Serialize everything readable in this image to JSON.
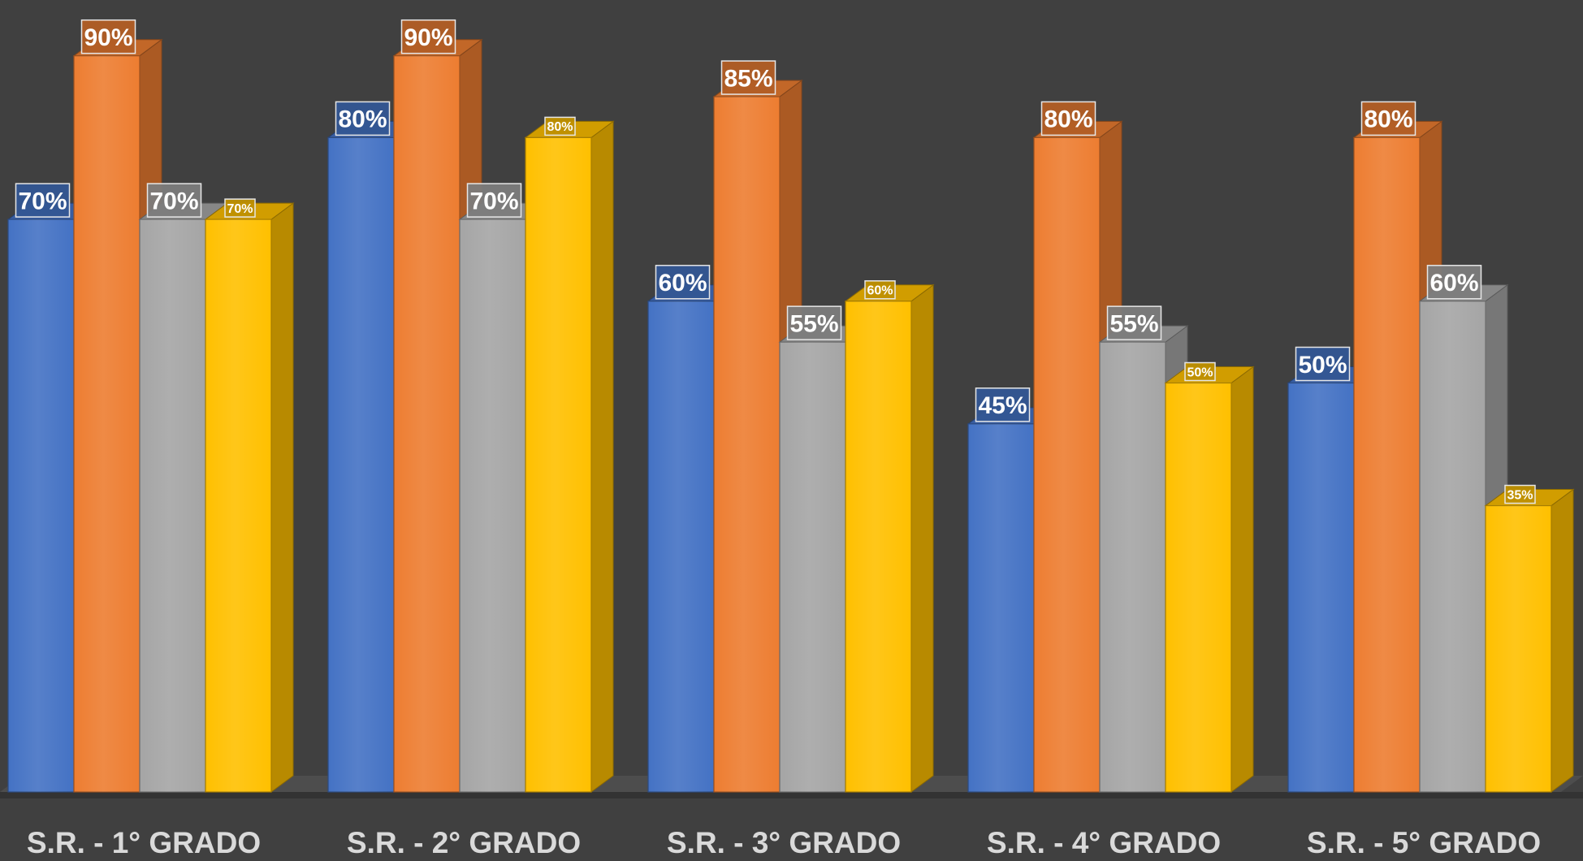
{
  "chart_data": {
    "type": "bar",
    "style": "3d-clustered-column",
    "categories": [
      "S.R. - 1° GRADO",
      "S.R. - 2° GRADO",
      "S.R. - 3° GRADO",
      "S.R. - 4° GRADO",
      "S.R. - 5° GRADO"
    ],
    "series": [
      {
        "color": "#4472C4",
        "values": [
          70,
          80,
          60,
          45,
          50
        ]
      },
      {
        "color": "#ED7D31",
        "values": [
          90,
          90,
          85,
          80,
          80
        ]
      },
      {
        "color": "#A5A5A5",
        "values": [
          70,
          70,
          55,
          55,
          60
        ]
      },
      {
        "color": "#FFC000",
        "values": [
          70,
          80,
          60,
          50,
          35
        ]
      }
    ],
    "value_suffix": "%",
    "ylim": [
      0,
      100
    ],
    "grid": false,
    "legend": "none",
    "background": "#404040",
    "label_color": "#FFFFFF",
    "category_label_color": "#D9D9D9"
  }
}
